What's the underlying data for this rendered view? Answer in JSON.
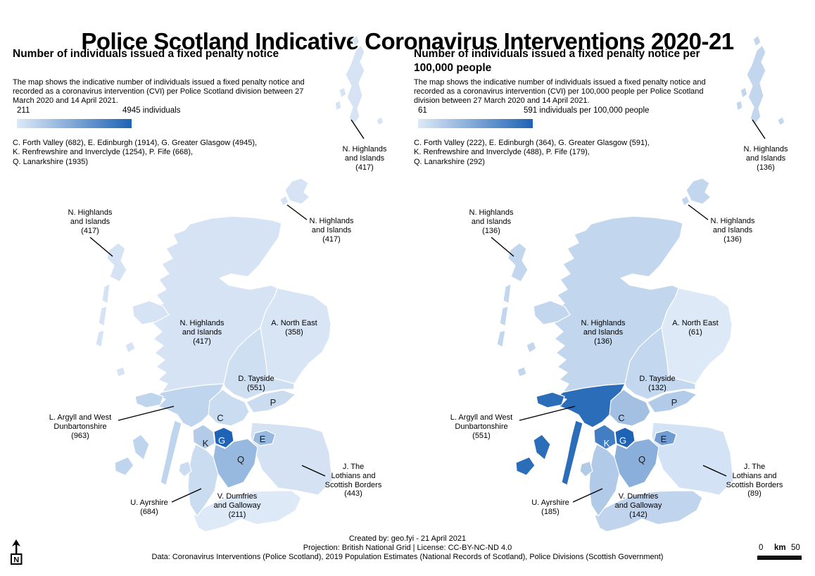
{
  "page_title": "Police Scotland Indicative Coronavirus Interventions 2020-21",
  "colors": {
    "scale_min": "#dde9f7",
    "scale_max": "#1e63b5",
    "region_border": "#ffffff",
    "leader_line": "#000000",
    "letter_dark_text": "#1a1a1a",
    "letter_light_text": "#ffffff"
  },
  "panels": [
    {
      "title_lines": [
        "Number of individuals issued a fixed penalty notice"
      ],
      "description_lines": [
        "The map shows the indicative number of individuals issued a fixed penalty notice and",
        "recorded as a coronavirus intervention (CVI) per Police Scotland division between 27",
        "March 2020 and 14 April 2021."
      ],
      "legend": {
        "min_label": "211",
        "max_label": "4945 individuals"
      },
      "notes": [
        "C. Forth Valley (682), E. Edinburgh (1914), G. Greater Glasgow (4945),",
        "K. Renfrewshire and Inverclyde (1254), P. Fife (668),",
        "Q. Lanarkshire (1935)"
      ],
      "scale": {
        "min": 211,
        "max": 4945
      },
      "region_values": {
        "N": 417,
        "A": 358,
        "D": 551,
        "P": 668,
        "C": 682,
        "E": 1914,
        "J": 443,
        "G": 4945,
        "K": 1254,
        "Q": 1935,
        "L": 963,
        "U": 684,
        "V": 211
      },
      "region_letters": {
        "C": "C",
        "P": "P",
        "K": "K",
        "G": "G",
        "E": "E",
        "Q": "Q"
      },
      "map_labels": {
        "nhi": [
          "N. Highlands",
          "and Islands",
          "(417)"
        ],
        "north_east": [
          "A. North East",
          "(358)"
        ],
        "tayside": [
          "D. Tayside",
          "(551)"
        ],
        "argyll": [
          "L. Argyll and West",
          "Dunbartonshire",
          "(963)"
        ],
        "lothians": [
          "J. The",
          "Lothians and",
          "Scottish Borders",
          "(443)"
        ],
        "ayrshire": [
          "U. Ayrshire",
          "(684)"
        ],
        "dumfries": [
          "V. Dumfries",
          "and Galloway",
          "(211)"
        ]
      }
    },
    {
      "title_lines": [
        "Number of individuals issued a fixed penalty notice per",
        "100,000 people"
      ],
      "description_lines": [
        "The map shows the indicative number of individuals issued a fixed penalty notice and",
        "recorded as a coronavirus intervention (CVI) per 100,000 people per Police Scotland",
        "division between 27 March 2020 and 14 April 2021."
      ],
      "legend": {
        "min_label": "61",
        "max_label": "591 individuals per 100,000 people"
      },
      "notes": [
        "C. Forth Valley (222), E. Edinburgh (364), G. Greater Glasgow (591),",
        "K. Renfrewshire and Inverclyde (488), P. Fife (179),",
        "Q. Lanarkshire (292)"
      ],
      "scale": {
        "min": 61,
        "max": 591
      },
      "region_values": {
        "N": 136,
        "A": 61,
        "D": 132,
        "P": 179,
        "C": 222,
        "E": 364,
        "J": 89,
        "G": 591,
        "K": 488,
        "Q": 292,
        "L": 551,
        "U": 185,
        "V": 142
      },
      "region_letters": {
        "C": "C",
        "P": "P",
        "K": "K",
        "G": "G",
        "E": "E",
        "Q": "Q"
      },
      "map_labels": {
        "nhi": [
          "N. Highlands",
          "and Islands",
          "(136)"
        ],
        "north_east": [
          "A. North East",
          "(61)"
        ],
        "tayside": [
          "D. Tayside",
          "(132)"
        ],
        "argyll": [
          "L. Argyll and West",
          "Dunbartonshire",
          "(551)"
        ],
        "lothians": [
          "J. The",
          "Lothians and",
          "Scottish Borders",
          "(89)"
        ],
        "ayrshire": [
          "U. Ayrshire",
          "(185)"
        ],
        "dumfries": [
          "V. Dumfries",
          "and Galloway",
          "(142)"
        ]
      }
    }
  ],
  "footer": [
    "Created by: geo.fyi - 21 April 2021",
    "Projection: British National Grid | License: CC-BY-NC-ND 4.0",
    "Data: Coronavirus Interventions (Police Scotland), 2019 Population Estimates (National Records of Scotland), Police Divisions (Scottish Government)"
  ],
  "compass": {
    "label": "N"
  },
  "scalebar": {
    "start": "0",
    "unit": "km",
    "end": "50"
  }
}
